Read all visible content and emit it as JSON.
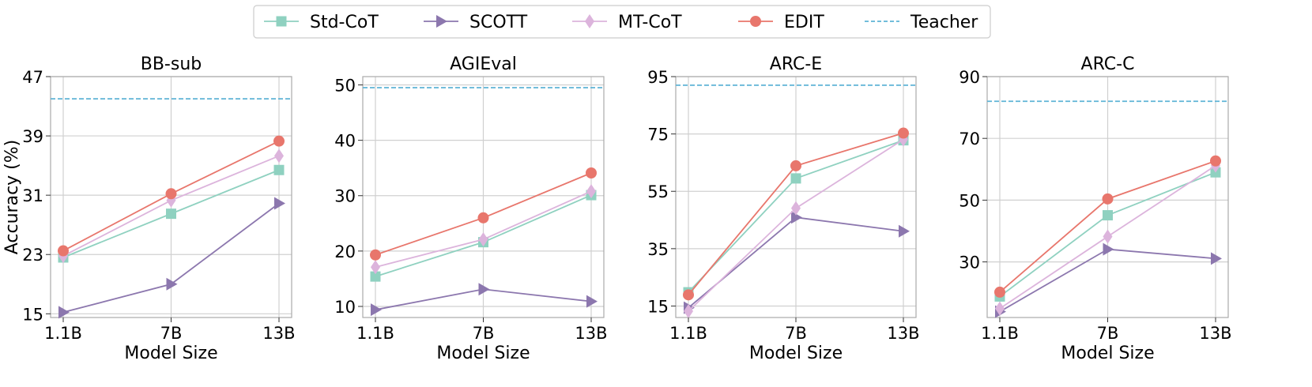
{
  "legend": {
    "entries": [
      {
        "label": "Std-CoT",
        "color": "#8fd1c0",
        "marker": "square",
        "dashed": false
      },
      {
        "label": "SCOTT",
        "color": "#8c77ae",
        "marker": "triangle-right",
        "dashed": false
      },
      {
        "label": "MT-CoT",
        "color": "#dcb4dc",
        "marker": "diamond",
        "dashed": false
      },
      {
        "label": "EDIT",
        "color": "#e8766c",
        "marker": "circle",
        "dashed": false
      },
      {
        "label": "Teacher",
        "color": "#5fb4d6",
        "marker": "none",
        "dashed": true
      }
    ]
  },
  "chart_data": [
    {
      "type": "line",
      "title": "BB-sub",
      "xlabel": "Model Size",
      "ylabel": "Accuracy (%)",
      "categories": [
        "1.1B",
        "7B",
        "13B"
      ],
      "ylim": [
        14.5,
        47
      ],
      "yticks": [
        15,
        23,
        31,
        39,
        47
      ],
      "grid": true,
      "teacher": 44,
      "series": [
        {
          "name": "Std-CoT",
          "values": [
            22.6,
            28.5,
            34.4
          ]
        },
        {
          "name": "SCOTT",
          "values": [
            15.2,
            19.0,
            29.9
          ]
        },
        {
          "name": "MT-CoT",
          "values": [
            22.8,
            30.3,
            36.3
          ]
        },
        {
          "name": "EDIT",
          "values": [
            23.5,
            31.2,
            38.3
          ]
        }
      ]
    },
    {
      "type": "line",
      "title": "AGIEval",
      "xlabel": "Model Size",
      "ylabel": "",
      "categories": [
        "1.1B",
        "7B",
        "13B"
      ],
      "ylim": [
        8,
        51.5
      ],
      "yticks": [
        10,
        20,
        30,
        40,
        50
      ],
      "grid": true,
      "teacher": 49.5,
      "series": [
        {
          "name": "Std-CoT",
          "values": [
            15.4,
            21.6,
            30.1
          ]
        },
        {
          "name": "SCOTT",
          "values": [
            9.4,
            13.1,
            10.9
          ]
        },
        {
          "name": "MT-CoT",
          "values": [
            17.1,
            22.1,
            30.8
          ]
        },
        {
          "name": "EDIT",
          "values": [
            19.3,
            26.0,
            34.1
          ]
        }
      ]
    },
    {
      "type": "line",
      "title": "ARC-E",
      "xlabel": "Model Size",
      "ylabel": "",
      "categories": [
        "1.1B",
        "7B",
        "13B"
      ],
      "ylim": [
        11,
        95
      ],
      "yticks": [
        15,
        35,
        55,
        75,
        95
      ],
      "grid": true,
      "teacher": 92,
      "series": [
        {
          "name": "Std-CoT",
          "values": [
            19.8,
            59.5,
            72.8
          ]
        },
        {
          "name": "SCOTT",
          "values": [
            14.4,
            45.9,
            41.1
          ]
        },
        {
          "name": "MT-CoT",
          "values": [
            13.2,
            49.1,
            73.1
          ]
        },
        {
          "name": "EDIT",
          "values": [
            18.9,
            63.9,
            75.3
          ]
        }
      ]
    },
    {
      "type": "line",
      "title": "ARC-C",
      "xlabel": "Model Size",
      "ylabel": "",
      "categories": [
        "1.1B",
        "7B",
        "13B"
      ],
      "ylim": [
        12,
        90
      ],
      "yticks": [
        30,
        50,
        70,
        90
      ],
      "grid": true,
      "teacher": 82,
      "series": [
        {
          "name": "Std-CoT",
          "values": [
            18.8,
            45.1,
            59.0
          ]
        },
        {
          "name": "SCOTT",
          "values": [
            13.9,
            34.1,
            31.1
          ]
        },
        {
          "name": "MT-CoT",
          "values": [
            14.9,
            38.2,
            61.2
          ]
        },
        {
          "name": "EDIT",
          "values": [
            20.2,
            50.4,
            62.7
          ]
        }
      ]
    }
  ]
}
